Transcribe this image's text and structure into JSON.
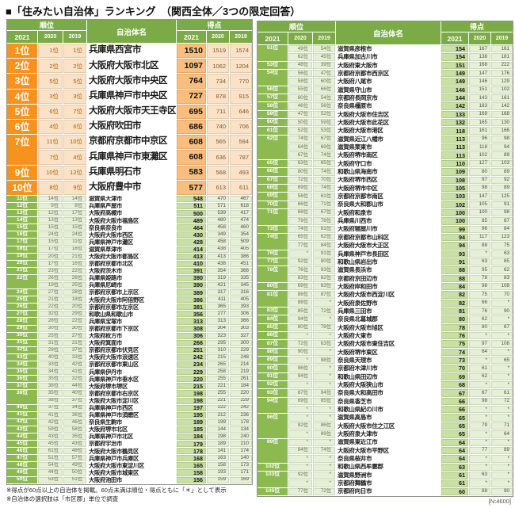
{
  "chart_data": {
    "type": "table",
    "title": "■「住みたい自治体」ランキング　（関西全体／3つの限定回答）",
    "columns": {
      "rank": "順位",
      "name": "自治体名",
      "score": "得点",
      "years": [
        "2021",
        "2020",
        "2019"
      ]
    },
    "colors": {
      "header_green": "#7BAB46",
      "rank_orange": "#F6921E",
      "score_orange": "#F9BE7E",
      "pale_orange": "#FBE2C6",
      "rank_green": "#8DBA50",
      "score_green": "#C9E0A4",
      "pale_green": "#E6F0D6"
    },
    "footnotes": [
      "※得点が60点以上の自治体を掲載。60点未満は順位・得点ともに「＊」として表示",
      "※自治体の選択肢は「市区郡」単位で調査"
    ],
    "n_note": "[N:4600]",
    "tables": [
      {
        "id": "left",
        "big_rows": 10,
        "rows": [
          [
            "1位",
            "1位",
            "1位",
            "兵庫県西宮市",
            "1510",
            "1519",
            "1574"
          ],
          [
            "2位",
            "2位",
            "2位",
            "大阪府大阪市北区",
            "1097",
            "1062",
            "1204"
          ],
          [
            "3位",
            "5位",
            "5位",
            "大阪府大阪市中央区",
            "764",
            "734",
            "770"
          ],
          [
            "4位",
            "3位",
            "3位",
            "兵庫県神戸市中央区",
            "727",
            "878",
            "915"
          ],
          [
            "5位",
            "6位",
            "7位",
            "大阪府大阪市天王寺区",
            "695",
            "711",
            "646"
          ],
          [
            "6位",
            "4位",
            "6位",
            "大阪府吹田市",
            "686",
            "740",
            "706"
          ],
          [
            "7位",
            "11位",
            "10位",
            "京都府京都市中京区",
            "608",
            "565",
            "594"
          ],
          [
            "",
            "7位",
            "4位",
            "兵庫県神戸市東灘区",
            "608",
            "636",
            "787"
          ],
          [
            "9位",
            "10位",
            "12位",
            "兵庫県明石市",
            "583",
            "568",
            "493"
          ],
          [
            "10位",
            "8位",
            "9位",
            "大阪府豊中市",
            "577",
            "613",
            "611"
          ],
          [
            "11位",
            "14位",
            "14位",
            "滋賀県大津市",
            "548",
            "470",
            "467"
          ],
          [
            "12位",
            "9位",
            "8位",
            "兵庫県芦屋市",
            "511",
            "571",
            "618"
          ],
          [
            "13位",
            "12位",
            "17位",
            "大阪府高槻市",
            "500",
            "539",
            "417"
          ],
          [
            "14位",
            "13位",
            "13位",
            "大阪府大阪市福島区",
            "489",
            "480",
            "474"
          ],
          [
            "15位",
            "15位",
            "15位",
            "奈良県奈良市",
            "464",
            "458",
            "460"
          ],
          [
            "16位",
            "24位",
            "24位",
            "大阪府大阪市西区",
            "430",
            "349",
            "354"
          ],
          [
            "17位",
            "15位",
            "11位",
            "兵庫県神戸市灘区",
            "428",
            "458",
            "509"
          ],
          [
            "18位",
            "17位",
            "18位",
            "滋賀県草津市",
            "414",
            "438",
            "405"
          ],
          [
            "19位",
            "20位",
            "21位",
            "大阪府大阪市都島区",
            "413",
            "413",
            "386"
          ],
          [
            "20位",
            "17位",
            "16位",
            "京都府京都市北区",
            "410",
            "438",
            "451"
          ],
          [
            "21位",
            "23位",
            "22位",
            "大阪府茨木市",
            "391",
            "354",
            "366"
          ],
          [
            "22位",
            "26位",
            "26位",
            "兵庫県姫路市",
            "390",
            "319",
            "335"
          ],
          [
            "",
            "19位",
            "25位",
            "兵庫県尼崎市",
            "390",
            "421",
            "345"
          ],
          [
            "24位",
            "27位",
            "28位",
            "京都府京都市上京区",
            "389",
            "317",
            "316"
          ],
          [
            "25位",
            "21位",
            "18位",
            "大阪府大阪市阿倍野区",
            "386",
            "411",
            "405"
          ],
          [
            "26位",
            "22位",
            "20位",
            "京都府京都市左京区",
            "381",
            "365",
            "393"
          ],
          [
            "27位",
            "32位",
            "29位",
            "和歌山県和歌山市",
            "356",
            "277",
            "306"
          ],
          [
            "28位",
            "28位",
            "22位",
            "兵庫県宝塚市",
            "313",
            "313",
            "366"
          ],
          [
            "29位",
            "30位",
            "30位",
            "京都府京都市下京区",
            "308",
            "304",
            "303"
          ],
          [
            "30位",
            "25位",
            "27位",
            "大阪府枚方市",
            "306",
            "323",
            "327"
          ],
          [
            "31位",
            "31位",
            "31位",
            "大阪府箕面市",
            "266",
            "295",
            "300"
          ],
          [
            "32位",
            "29位",
            "37位",
            "京都府京都市伏見区",
            "251",
            "310",
            "229"
          ],
          [
            "33位",
            "40位",
            "33位",
            "大阪府大阪市浪速区",
            "242",
            "215",
            "248"
          ],
          [
            "34位",
            "33位",
            "42位",
            "京都府京都市東山区",
            "234",
            "265",
            "214"
          ],
          [
            "35位",
            "34位",
            "41位",
            "兵庫県伊丹市",
            "229",
            "258",
            "219"
          ],
          [
            "36位",
            "35位",
            "32位",
            "兵庫県神戸市垂水区",
            "220",
            "255",
            "261"
          ],
          [
            "37位",
            "38位",
            "44位",
            "大阪府堺市堺区",
            "215",
            "221",
            "184"
          ],
          [
            "38位",
            "35位",
            "40位",
            "京都府京都市右京区",
            "198",
            "255",
            "220"
          ],
          [
            "",
            "38位",
            "37位",
            "大阪府大阪市淀川区",
            "198",
            "221",
            "229"
          ],
          [
            "40位",
            "37位",
            "34位",
            "兵庫県神戸市西区",
            "197",
            "222",
            "242"
          ],
          [
            "41位",
            "41位",
            "36位",
            "兵庫県神戸市須磨区",
            "195",
            "212",
            "236"
          ],
          [
            "42位",
            "42位",
            "46位",
            "奈良県生駒市",
            "189",
            "199",
            "178"
          ],
          [
            "43位",
            "59位",
            "58位",
            "大阪府堺市北区",
            "185",
            "144",
            "134"
          ],
          [
            "44位",
            "43位",
            "35位",
            "兵庫県神戸市北区",
            "184",
            "198",
            "240"
          ],
          [
            "45位",
            "45位",
            "43位",
            "京都府宇治市",
            "179",
            "189",
            "210"
          ],
          [
            "46位",
            "61位",
            "48位",
            "大阪府大阪市鶴見区",
            "178",
            "141",
            "174"
          ],
          [
            "47位",
            "51位",
            "57位",
            "兵庫県神戸市兵庫区",
            "168",
            "163",
            "140"
          ],
          [
            "48位",
            "54位",
            "49位",
            "大阪府大阪市東淀川区",
            "165",
            "158",
            "173"
          ],
          [
            "49位",
            "44位",
            "50位",
            "大阪府大阪市城東区",
            "158",
            "193",
            "171"
          ],
          [
            "50位",
            "53位",
            "51位",
            "大阪府池田市",
            "156",
            "159",
            "169"
          ]
        ]
      },
      {
        "id": "right",
        "big_rows": 0,
        "rows": [
          [
            "51位",
            "49位",
            "54位",
            "滋賀県彦根市",
            "154",
            "167",
            "161"
          ],
          [
            "",
            "62位",
            "45位",
            "兵庫県加古川市",
            "154",
            "138",
            "181"
          ],
          [
            "53位",
            "48位",
            "39位",
            "大阪府東大阪市",
            "151",
            "168",
            "222"
          ],
          [
            "54位",
            "56位",
            "47位",
            "京都府京都市西京区",
            "149",
            "147",
            "176"
          ],
          [
            "",
            "58位",
            "60位",
            "大阪府八尾市",
            "149",
            "146",
            "129"
          ],
          [
            "56位",
            "55位",
            "66位",
            "滋賀県守山市",
            "146",
            "151",
            "102"
          ],
          [
            "57位",
            "60位",
            "54位",
            "京都府長岡京市",
            "144",
            "143",
            "161"
          ],
          [
            "58位",
            "46位",
            "56位",
            "奈良県橿原市",
            "142",
            "183",
            "142"
          ],
          [
            "59位",
            "47位",
            "52位",
            "大阪府大阪市住吉区",
            "133",
            "169",
            "168"
          ],
          [
            "60位",
            "50位",
            "59位",
            "大阪府大阪市此花区",
            "132",
            "165",
            "130"
          ],
          [
            "61位",
            "52位",
            "53位",
            "大阪府大阪市港区",
            "118",
            "161",
            "166"
          ],
          [
            "62位",
            "74位",
            "67位",
            "滋賀県近江八幡市",
            "113",
            "96",
            "98"
          ],
          [
            "",
            "64位",
            "69位",
            "滋賀県栗東市",
            "113",
            "118",
            "94"
          ],
          [
            "",
            "67位",
            "74位",
            "大阪府堺市南区",
            "113",
            "102",
            "89"
          ],
          [
            "65位",
            "63位",
            "65位",
            "大阪府守口市",
            "110",
            "127",
            "103"
          ],
          [
            "66位",
            "80位",
            "74位",
            "和歌山県海南市",
            "109",
            "80",
            "89"
          ],
          [
            "67位",
            "72位",
            "70位",
            "大阪府堺市西区",
            "108",
            "97",
            "92"
          ],
          [
            "68位",
            "69位",
            "74位",
            "大阪府堺市中区",
            "105",
            "98",
            "89"
          ],
          [
            "69位",
            "56位",
            "61位",
            "京都府京都市南区",
            "103",
            "147",
            "125"
          ],
          [
            "70位",
            "66位",
            "71位",
            "奈良県大和郡山市",
            "102",
            "105",
            "91"
          ],
          [
            "71位",
            "68位",
            "67位",
            "大阪府和泉市",
            "100",
            "100",
            "98"
          ],
          [
            "",
            "79位",
            "78位",
            "兵庫県川西市",
            "100",
            "85",
            "87"
          ],
          [
            "73位",
            "74位",
            "81位",
            "大阪府寝屋川市",
            "99",
            "96",
            "84"
          ],
          [
            "74位",
            "65位",
            "62位",
            "京都府京都市山科区",
            "94",
            "117",
            "123"
          ],
          [
            "",
            "77位",
            "84位",
            "大阪府大阪市大正区",
            "94",
            "88",
            "75"
          ],
          [
            "76位",
            "*",
            "91位",
            "兵庫県神戸市長田区",
            "93",
            "*",
            "63"
          ],
          [
            "77位",
            "92位",
            "80位",
            "和歌山県岩出市",
            "91",
            "63",
            "85"
          ],
          [
            "78位",
            "76位",
            "93位",
            "滋賀県長浜市",
            "88",
            "95",
            "62"
          ],
          [
            "",
            "83位",
            "82位",
            "京都府京田辺市",
            "88",
            "78",
            "83"
          ],
          [
            "80位",
            "69位",
            "63位",
            "大阪府岸和田市",
            "84",
            "98",
            "108"
          ],
          [
            "81位",
            "86位",
            "87位",
            "大阪府大阪市西淀川区",
            "82",
            "75",
            "70"
          ],
          [
            "",
            "88位",
            "*",
            "大阪府泉佐野市",
            "82",
            "66",
            "*"
          ],
          [
            "83位",
            "85位",
            "72位",
            "兵庫県三田市",
            "81",
            "76",
            "90"
          ],
          [
            "84位",
            "94位",
            "*",
            "奈良県北葛城郡",
            "80",
            "62",
            "*"
          ],
          [
            "85位",
            "80位",
            "78位",
            "大阪府大阪市旭区",
            "78",
            "80",
            "87"
          ],
          [
            "86位",
            "*",
            "*",
            "大阪府大東市",
            "76",
            "*",
            "*"
          ],
          [
            "87位",
            "72位",
            "63位",
            "大阪府大阪市東住吉区",
            "75",
            "97",
            "108"
          ],
          [
            "88位",
            "90位",
            "*",
            "大阪府堺市東区",
            "74",
            "64",
            "*"
          ],
          [
            "89位",
            "*",
            "88位",
            "奈良県天理市",
            "73",
            "*",
            "65"
          ],
          [
            "90位",
            "96位",
            "*",
            "京都府木津川市",
            "70",
            "61",
            "*"
          ],
          [
            "91位",
            "94位",
            "*",
            "和歌山県田辺市",
            "69",
            "62",
            "*"
          ],
          [
            "92位",
            "*",
            "*",
            "大阪府大阪狭山市",
            "68",
            "*",
            "*"
          ],
          [
            "93位",
            "87位",
            "94位",
            "奈良県大和高田市",
            "67",
            "67",
            "61"
          ],
          [
            "94位",
            "69位",
            "85位",
            "奈良県香芝市",
            "66",
            "98",
            "72"
          ],
          [
            "",
            "*",
            "*",
            "和歌山県紀の川市",
            "66",
            "*",
            "*"
          ],
          [
            "96位",
            "*",
            "*",
            "滋賀県高島市",
            "65",
            "*",
            "*"
          ],
          [
            "",
            "82位",
            "86位",
            "大阪府大阪市住之江区",
            "65",
            "79",
            "71"
          ],
          [
            "",
            "*",
            "89位",
            "大阪府泉大津市",
            "65",
            "*",
            "64"
          ],
          [
            "99位",
            "*",
            "*",
            "滋賀県東近江市",
            "64",
            "*",
            "*"
          ],
          [
            "",
            "84位",
            "74位",
            "大阪府大阪市平野区",
            "64",
            "77",
            "89"
          ],
          [
            "",
            "*",
            "*",
            "奈良県桜井市",
            "64",
            "*",
            "*"
          ],
          [
            "102位",
            "*",
            "*",
            "和歌山県西牟婁郡",
            "63",
            "*",
            "*"
          ],
          [
            "103位",
            "92位",
            "*",
            "滋賀県野洲市",
            "61",
            "63",
            "*"
          ],
          [
            "",
            "*",
            "*",
            "京都府舞鶴市",
            "61",
            "*",
            "*"
          ],
          [
            "105位",
            "77位",
            "72位",
            "京都府向日市",
            "60",
            "88",
            "90"
          ]
        ]
      }
    ]
  }
}
